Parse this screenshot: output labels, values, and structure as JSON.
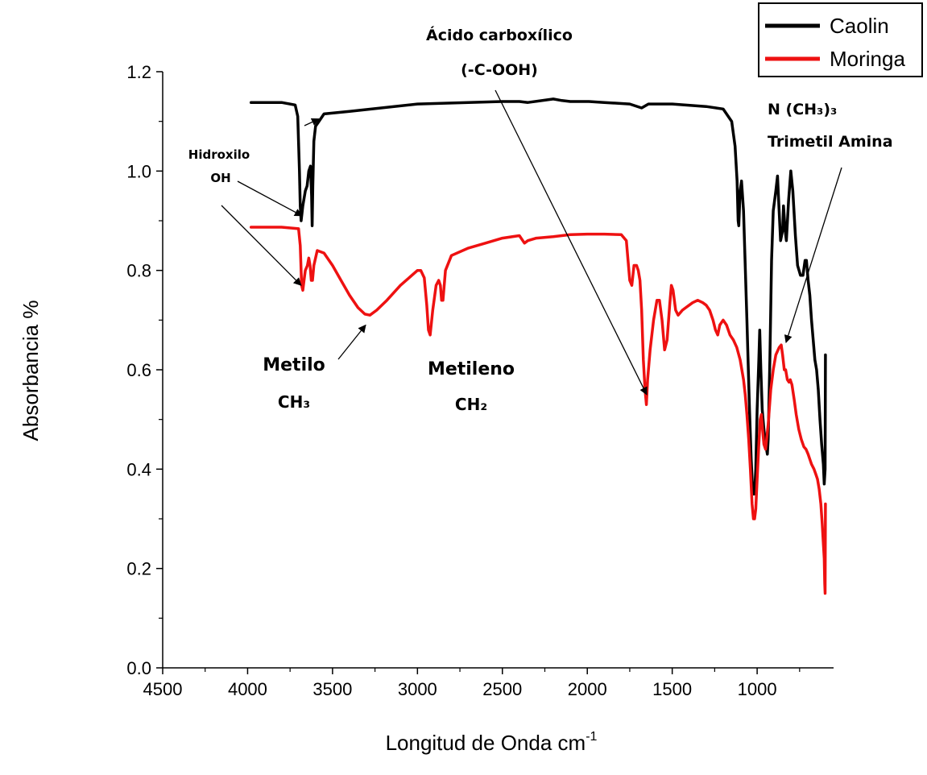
{
  "chart_data": {
    "type": "line",
    "title": "",
    "xlabel": "Longitud de Onda cm",
    "xlabel_sup": "-1",
    "ylabel": "Absorbancia %",
    "xlim": [
      4500,
      550
    ],
    "ylim": [
      0,
      1.2
    ],
    "x_reversed": true,
    "grid": false,
    "legend_position": "top-right",
    "x_ticks": [
      "4500",
      "4000",
      "3500",
      "3000",
      "2500",
      "2000",
      "1500",
      "1000"
    ],
    "y_ticks": [
      "0.0",
      "0.2",
      "0.4",
      "0.6",
      "0.8",
      "1.0",
      "1.2"
    ],
    "series": [
      {
        "name": "Caolin",
        "color": "#000000",
        "points": [
          [
            3980,
            1.138
          ],
          [
            3800,
            1.138
          ],
          [
            3720,
            1.133
          ],
          [
            3705,
            1.11
          ],
          [
            3695,
            1.0
          ],
          [
            3690,
            0.93
          ],
          [
            3685,
            0.9
          ],
          [
            3675,
            0.93
          ],
          [
            3660,
            0.96
          ],
          [
            3650,
            0.97
          ],
          [
            3640,
            1.0
          ],
          [
            3630,
            1.01
          ],
          [
            3623,
            0.95
          ],
          [
            3620,
            0.89
          ],
          [
            3616,
            0.97
          ],
          [
            3610,
            1.06
          ],
          [
            3600,
            1.09
          ],
          [
            3580,
            1.1
          ],
          [
            3550,
            1.115
          ],
          [
            3400,
            1.12
          ],
          [
            3000,
            1.135
          ],
          [
            2500,
            1.14
          ],
          [
            2400,
            1.14
          ],
          [
            2350,
            1.138
          ],
          [
            2200,
            1.145
          ],
          [
            2150,
            1.142
          ],
          [
            2100,
            1.14
          ],
          [
            1990,
            1.14
          ],
          [
            1900,
            1.138
          ],
          [
            1750,
            1.135
          ],
          [
            1680,
            1.127
          ],
          [
            1640,
            1.135
          ],
          [
            1500,
            1.135
          ],
          [
            1300,
            1.13
          ],
          [
            1200,
            1.125
          ],
          [
            1150,
            1.1
          ],
          [
            1130,
            1.05
          ],
          [
            1118,
            0.98
          ],
          [
            1112,
            0.9
          ],
          [
            1108,
            0.89
          ],
          [
            1100,
            0.96
          ],
          [
            1092,
            0.98
          ],
          [
            1080,
            0.92
          ],
          [
            1060,
            0.7
          ],
          [
            1045,
            0.52
          ],
          [
            1035,
            0.42
          ],
          [
            1025,
            0.35
          ],
          [
            1015,
            0.35
          ],
          [
            1008,
            0.4
          ],
          [
            1000,
            0.52
          ],
          [
            990,
            0.62
          ],
          [
            985,
            0.68
          ],
          [
            978,
            0.6
          ],
          [
            970,
            0.52
          ],
          [
            960,
            0.48
          ],
          [
            950,
            0.45
          ],
          [
            940,
            0.43
          ],
          [
            935,
            0.46
          ],
          [
            925,
            0.62
          ],
          [
            915,
            0.82
          ],
          [
            905,
            0.92
          ],
          [
            890,
            0.96
          ],
          [
            880,
            0.99
          ],
          [
            872,
            0.93
          ],
          [
            862,
            0.86
          ],
          [
            850,
            0.88
          ],
          [
            845,
            0.93
          ],
          [
            835,
            0.88
          ],
          [
            828,
            0.86
          ],
          [
            815,
            0.94
          ],
          [
            802,
            1.0
          ],
          [
            790,
            0.96
          ],
          [
            775,
            0.87
          ],
          [
            762,
            0.81
          ],
          [
            745,
            0.79
          ],
          [
            730,
            0.79
          ],
          [
            718,
            0.82
          ],
          [
            710,
            0.82
          ],
          [
            700,
            0.78
          ],
          [
            690,
            0.75
          ],
          [
            680,
            0.7
          ],
          [
            670,
            0.66
          ],
          [
            660,
            0.62
          ],
          [
            650,
            0.6
          ],
          [
            640,
            0.56
          ],
          [
            630,
            0.5
          ],
          [
            620,
            0.45
          ],
          [
            610,
            0.41
          ],
          [
            605,
            0.37
          ],
          [
            600,
            0.4
          ],
          [
            598,
            0.63
          ]
        ]
      },
      {
        "name": "Moringa",
        "color": "#ee1111",
        "points": [
          [
            3980,
            0.887
          ],
          [
            3800,
            0.887
          ],
          [
            3700,
            0.884
          ],
          [
            3690,
            0.85
          ],
          [
            3682,
            0.77
          ],
          [
            3675,
            0.76
          ],
          [
            3668,
            0.78
          ],
          [
            3660,
            0.8
          ],
          [
            3648,
            0.81
          ],
          [
            3640,
            0.825
          ],
          [
            3632,
            0.81
          ],
          [
            3625,
            0.78
          ],
          [
            3618,
            0.78
          ],
          [
            3610,
            0.81
          ],
          [
            3590,
            0.84
          ],
          [
            3550,
            0.835
          ],
          [
            3500,
            0.81
          ],
          [
            3450,
            0.78
          ],
          [
            3400,
            0.75
          ],
          [
            3350,
            0.725
          ],
          [
            3310,
            0.712
          ],
          [
            3280,
            0.71
          ],
          [
            3240,
            0.72
          ],
          [
            3180,
            0.74
          ],
          [
            3100,
            0.77
          ],
          [
            3050,
            0.785
          ],
          [
            3000,
            0.8
          ],
          [
            2980,
            0.8
          ],
          [
            2960,
            0.785
          ],
          [
            2945,
            0.73
          ],
          [
            2935,
            0.68
          ],
          [
            2925,
            0.67
          ],
          [
            2910,
            0.72
          ],
          [
            2890,
            0.77
          ],
          [
            2875,
            0.78
          ],
          [
            2865,
            0.77
          ],
          [
            2858,
            0.74
          ],
          [
            2850,
            0.74
          ],
          [
            2835,
            0.8
          ],
          [
            2800,
            0.83
          ],
          [
            2700,
            0.845
          ],
          [
            2600,
            0.855
          ],
          [
            2500,
            0.865
          ],
          [
            2400,
            0.87
          ],
          [
            2370,
            0.855
          ],
          [
            2350,
            0.86
          ],
          [
            2300,
            0.865
          ],
          [
            2200,
            0.868
          ],
          [
            2100,
            0.872
          ],
          [
            2000,
            0.873
          ],
          [
            1900,
            0.873
          ],
          [
            1800,
            0.872
          ],
          [
            1770,
            0.86
          ],
          [
            1760,
            0.82
          ],
          [
            1750,
            0.78
          ],
          [
            1738,
            0.77
          ],
          [
            1725,
            0.81
          ],
          [
            1710,
            0.81
          ],
          [
            1700,
            0.8
          ],
          [
            1690,
            0.78
          ],
          [
            1680,
            0.72
          ],
          [
            1670,
            0.62
          ],
          [
            1660,
            0.56
          ],
          [
            1652,
            0.53
          ],
          [
            1645,
            0.58
          ],
          [
            1630,
            0.64
          ],
          [
            1610,
            0.7
          ],
          [
            1590,
            0.74
          ],
          [
            1575,
            0.74
          ],
          [
            1560,
            0.7
          ],
          [
            1545,
            0.64
          ],
          [
            1530,
            0.66
          ],
          [
            1515,
            0.73
          ],
          [
            1505,
            0.77
          ],
          [
            1495,
            0.76
          ],
          [
            1480,
            0.72
          ],
          [
            1465,
            0.71
          ],
          [
            1440,
            0.72
          ],
          [
            1420,
            0.725
          ],
          [
            1400,
            0.73
          ],
          [
            1380,
            0.735
          ],
          [
            1350,
            0.74
          ],
          [
            1320,
            0.735
          ],
          [
            1300,
            0.73
          ],
          [
            1280,
            0.72
          ],
          [
            1260,
            0.7
          ],
          [
            1245,
            0.68
          ],
          [
            1232,
            0.67
          ],
          [
            1220,
            0.69
          ],
          [
            1200,
            0.7
          ],
          [
            1180,
            0.69
          ],
          [
            1160,
            0.67
          ],
          [
            1140,
            0.66
          ],
          [
            1120,
            0.645
          ],
          [
            1100,
            0.62
          ],
          [
            1080,
            0.58
          ],
          [
            1070,
            0.55
          ],
          [
            1060,
            0.51
          ],
          [
            1050,
            0.46
          ],
          [
            1040,
            0.4
          ],
          [
            1030,
            0.33
          ],
          [
            1022,
            0.3
          ],
          [
            1015,
            0.3
          ],
          [
            1008,
            0.32
          ],
          [
            1000,
            0.38
          ],
          [
            990,
            0.45
          ],
          [
            982,
            0.5
          ],
          [
            975,
            0.51
          ],
          [
            968,
            0.48
          ],
          [
            960,
            0.45
          ],
          [
            950,
            0.44
          ],
          [
            935,
            0.49
          ],
          [
            920,
            0.56
          ],
          [
            905,
            0.6
          ],
          [
            890,
            0.63
          ],
          [
            870,
            0.645
          ],
          [
            858,
            0.65
          ],
          [
            850,
            0.63
          ],
          [
            840,
            0.6
          ],
          [
            832,
            0.6
          ],
          [
            822,
            0.58
          ],
          [
            812,
            0.575
          ],
          [
            805,
            0.58
          ],
          [
            795,
            0.57
          ],
          [
            782,
            0.54
          ],
          [
            770,
            0.51
          ],
          [
            755,
            0.48
          ],
          [
            740,
            0.46
          ],
          [
            725,
            0.445
          ],
          [
            712,
            0.44
          ],
          [
            700,
            0.43
          ],
          [
            690,
            0.42
          ],
          [
            680,
            0.41
          ],
          [
            665,
            0.4
          ],
          [
            655,
            0.39
          ],
          [
            645,
            0.38
          ],
          [
            635,
            0.36
          ],
          [
            625,
            0.33
          ],
          [
            617,
            0.29
          ],
          [
            610,
            0.25
          ],
          [
            605,
            0.22
          ],
          [
            602,
            0.17
          ],
          [
            600,
            0.15
          ],
          [
            598,
            0.33
          ]
        ]
      }
    ],
    "annotations": [
      {
        "lines": [
          "Ácido carboxílico",
          "(-C-OOH)"
        ]
      },
      {
        "lines": [
          "Hidroxilo",
          "OH"
        ]
      },
      {
        "lines": [
          "N (CH₃)₃",
          "Trimetil Amina"
        ]
      },
      {
        "lines": [
          "Metilo",
          "CH₃"
        ]
      },
      {
        "lines": [
          "Metileno",
          "CH₂"
        ]
      }
    ]
  }
}
